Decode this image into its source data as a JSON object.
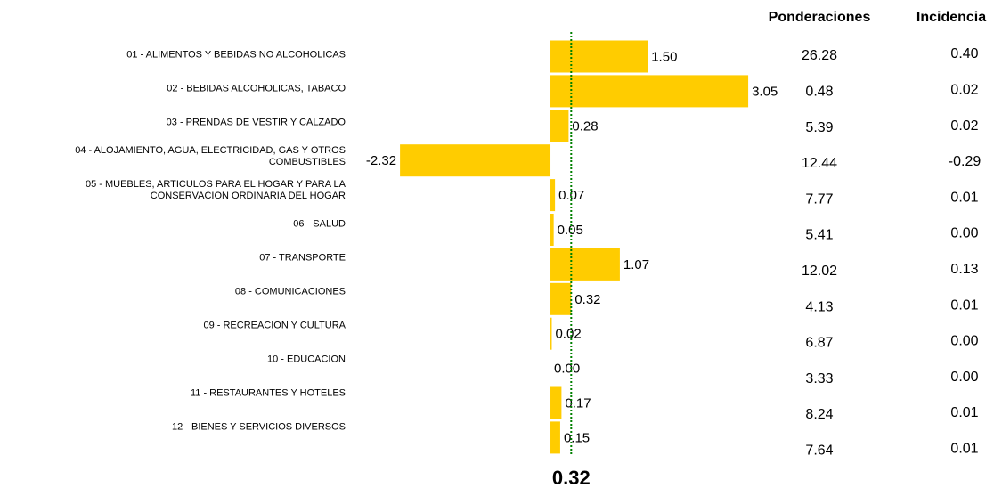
{
  "chart_data": {
    "type": "bar",
    "orientation": "horizontal",
    "categories": [
      "01 - ALIMENTOS Y BEBIDAS NO ALCOHOLICAS",
      "02 - BEBIDAS ALCOHOLICAS, TABACO",
      "03 - PRENDAS DE VESTIR Y CALZADO",
      "04 - ALOJAMIENTO, AGUA, ELECTRICIDAD, GAS Y OTROS COMBUSTIBLES",
      "05 - MUEBLES, ARTICULOS PARA EL HOGAR Y PARA LA CONSERVACION ORDINARIA DEL HOGAR",
      "06 - SALUD",
      "07 - TRANSPORTE",
      "08 - COMUNICACIONES",
      "09 - RECREACION Y CULTURA",
      "10 - EDUCACION",
      "11 - RESTAURANTES Y HOTELES",
      "12 - BIENES Y SERVICIOS DIVERSOS"
    ],
    "values": [
      1.5,
      3.05,
      0.28,
      -2.32,
      0.07,
      0.05,
      1.07,
      0.32,
      0.02,
      0,
      0.17,
      0.15
    ],
    "value_labels": [
      "1.50",
      "3.05",
      "0.28",
      "-2.32",
      "0.07",
      "0.05",
      "1.07",
      "0.32",
      "0.02",
      "0.00",
      "0.17",
      "0.15"
    ],
    "color": "#ffcc00",
    "xlim": [
      -2.5,
      3.2
    ],
    "reference": 0.32,
    "reference_color": "#008000"
  },
  "table": {
    "columns": [
      "Ponderaciones",
      "Incidencia"
    ],
    "rows": [
      [
        "26.28",
        "0.40"
      ],
      [
        "0.48",
        "0.02"
      ],
      [
        "5.39",
        "0.02"
      ],
      [
        "12.44",
        "-0.29"
      ],
      [
        "7.77",
        "0.01"
      ],
      [
        "5.41",
        "0.00"
      ],
      [
        "12.02",
        "0.13"
      ],
      [
        "4.13",
        "0.01"
      ],
      [
        "6.87",
        "0.00"
      ],
      [
        "3.33",
        "0.00"
      ],
      [
        "8.24",
        "0.01"
      ],
      [
        "7.64",
        "0.01"
      ]
    ]
  }
}
